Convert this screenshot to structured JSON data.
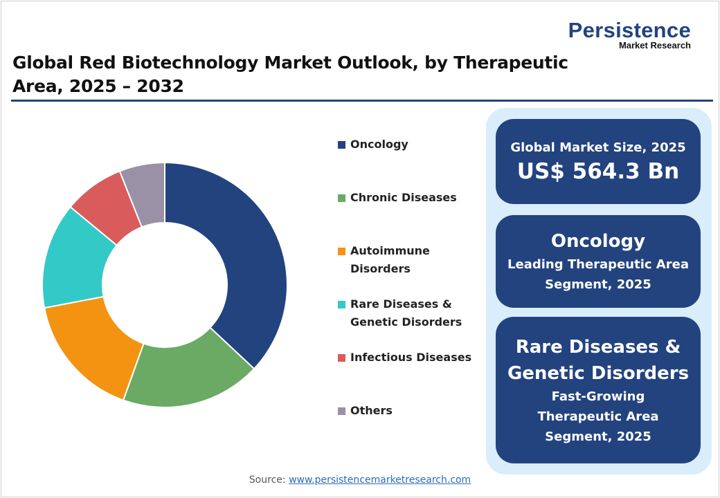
{
  "header": {
    "title": "Global Red Biotechnology Market Outlook, by Therapeutic Area, 2025 – 2032",
    "logo": {
      "line1": "Persistence",
      "line2": "Market Research"
    }
  },
  "chart_data": {
    "type": "pie",
    "donut": true,
    "legend_position": "right",
    "categories": [
      "Oncology",
      "Chronic Diseases",
      "Autoimmune Disorders",
      "Rare Diseases & Genetic Disorders",
      "Infectious Diseases",
      "Others"
    ],
    "values": [
      37,
      18.5,
      16.5,
      14,
      8,
      6
    ],
    "colors": [
      "#23437f",
      "#6aaa64",
      "#f39311",
      "#33c9c7",
      "#d95b5b",
      "#9a91a6"
    ]
  },
  "legend": [
    {
      "label": "Oncology"
    },
    {
      "label": "Chronic Diseases"
    },
    {
      "label": "Autoimmune\nDisorders"
    },
    {
      "label": "Rare Diseases &\nGenetic Disorders"
    },
    {
      "label": "Infectious Diseases"
    },
    {
      "label": "Others"
    }
  ],
  "cards": {
    "market": {
      "label": "Global Market Size, 2025",
      "value": "US$ 564.3 Bn"
    },
    "leading": {
      "name": "Oncology",
      "line1": "Leading Therapeutic Area",
      "line2": "Segment, 2025"
    },
    "growing": {
      "name1": "Rare Diseases &",
      "name2": "Genetic Disorders",
      "line1": "Fast-Growing",
      "line2": "Therapeutic Area",
      "line3": "Segment, 2025"
    }
  },
  "source": {
    "label": "Source:",
    "link": "www.persistencemarketresearch.com"
  },
  "colors": {
    "brand": "#23437f",
    "panel": "#d9edfb"
  }
}
